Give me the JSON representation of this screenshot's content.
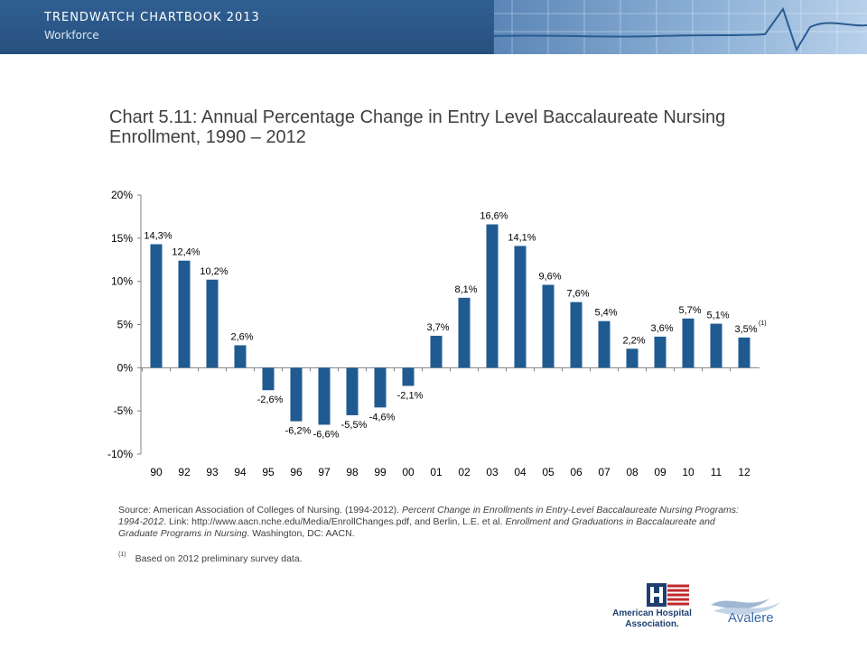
{
  "header": {
    "title": "TRENDWATCH CHARTBOOK 2013",
    "subtitle": "Workforce"
  },
  "chart_title": "Chart 5.11: Annual Percentage Change in Entry Level Baccalaureate Nursing Enrollment, 1990 – 2012",
  "chart_data": {
    "type": "bar",
    "title": "Chart 5.11: Annual Percentage Change in Entry Level Baccalaureate Nursing Enrollment, 1990 – 2012",
    "xlabel": "",
    "ylabel": "",
    "ylim": [
      -10,
      20
    ],
    "yticks": [
      "-10%",
      "-5%",
      "0%",
      "5%",
      "10%",
      "15%",
      "20%"
    ],
    "ytick_values": [
      -10,
      -5,
      0,
      5,
      10,
      15,
      20
    ],
    "categories": [
      "90",
      "92",
      "93",
      "94",
      "95",
      "96",
      "97",
      "98",
      "99",
      "00",
      "01",
      "02",
      "03",
      "04",
      "05",
      "06",
      "07",
      "08",
      "09",
      "10",
      "11",
      "12"
    ],
    "values": [
      14.3,
      12.4,
      10.2,
      2.6,
      -2.6,
      -6.2,
      -6.6,
      -5.5,
      -4.6,
      -2.1,
      3.7,
      8.1,
      16.6,
      14.1,
      9.6,
      7.6,
      5.4,
      2.2,
      3.6,
      5.7,
      5.1,
      3.5
    ],
    "data_labels": [
      "14,3%",
      "12,4%",
      "10,2%",
      "2,6%",
      "-2,6%",
      "-6,2%",
      "-6,6%",
      "-5,5%",
      "-4,6%",
      "-2,1%",
      "3,7%",
      "8,1%",
      "16,6%",
      "14,1%",
      "9,6%",
      "7,6%",
      "5,4%",
      "2,2%",
      "3,6%",
      "5,7%",
      "5,1%",
      "3,5%"
    ],
    "last_label_note": "(1)",
    "grid": false,
    "color": "#1f5b91"
  },
  "source": {
    "prefix": "Source: American Association of Colleges of Nursing. (1994-2012). ",
    "italic1": "Percent Change in Enrollments in Entry-Level Baccalaureate Nursing Programs: 1994-2012",
    "mid": ". Link: http://www.aacn.nche.edu/Media/EnrollChanges.pdf, and Berlin, L.E. et al. ",
    "italic2": "Enrollment and Graduations in Baccalaureate and Graduate Programs in Nursing",
    "suffix": ". Washington, DC: AACN."
  },
  "note": {
    "marker": "(1)",
    "text": "Based on 2012 preliminary survey data."
  },
  "logos": {
    "aha_line1": "American Hospital",
    "aha_line2": "Association.",
    "avalere": "Avalere"
  }
}
